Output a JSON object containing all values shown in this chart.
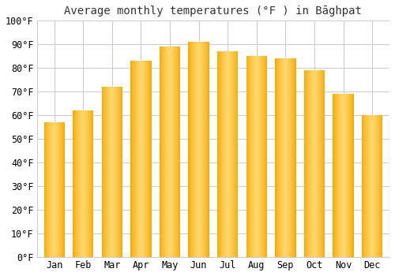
{
  "title": "Average monthly temperatures (°F ) in Bāghpat",
  "months": [
    "Jan",
    "Feb",
    "Mar",
    "Apr",
    "May",
    "Jun",
    "Jul",
    "Aug",
    "Sep",
    "Oct",
    "Nov",
    "Dec"
  ],
  "values": [
    57,
    62,
    72,
    83,
    89,
    91,
    87,
    85,
    84,
    79,
    69,
    60
  ],
  "bar_color_edge": "#F5A800",
  "bar_color_center": "#FFD870",
  "background_color": "#ffffff",
  "grid_color": "#cccccc",
  "ylim": [
    0,
    100
  ],
  "ytick_step": 10,
  "title_fontsize": 10,
  "tick_fontsize": 8.5,
  "gradient_steps": 60
}
